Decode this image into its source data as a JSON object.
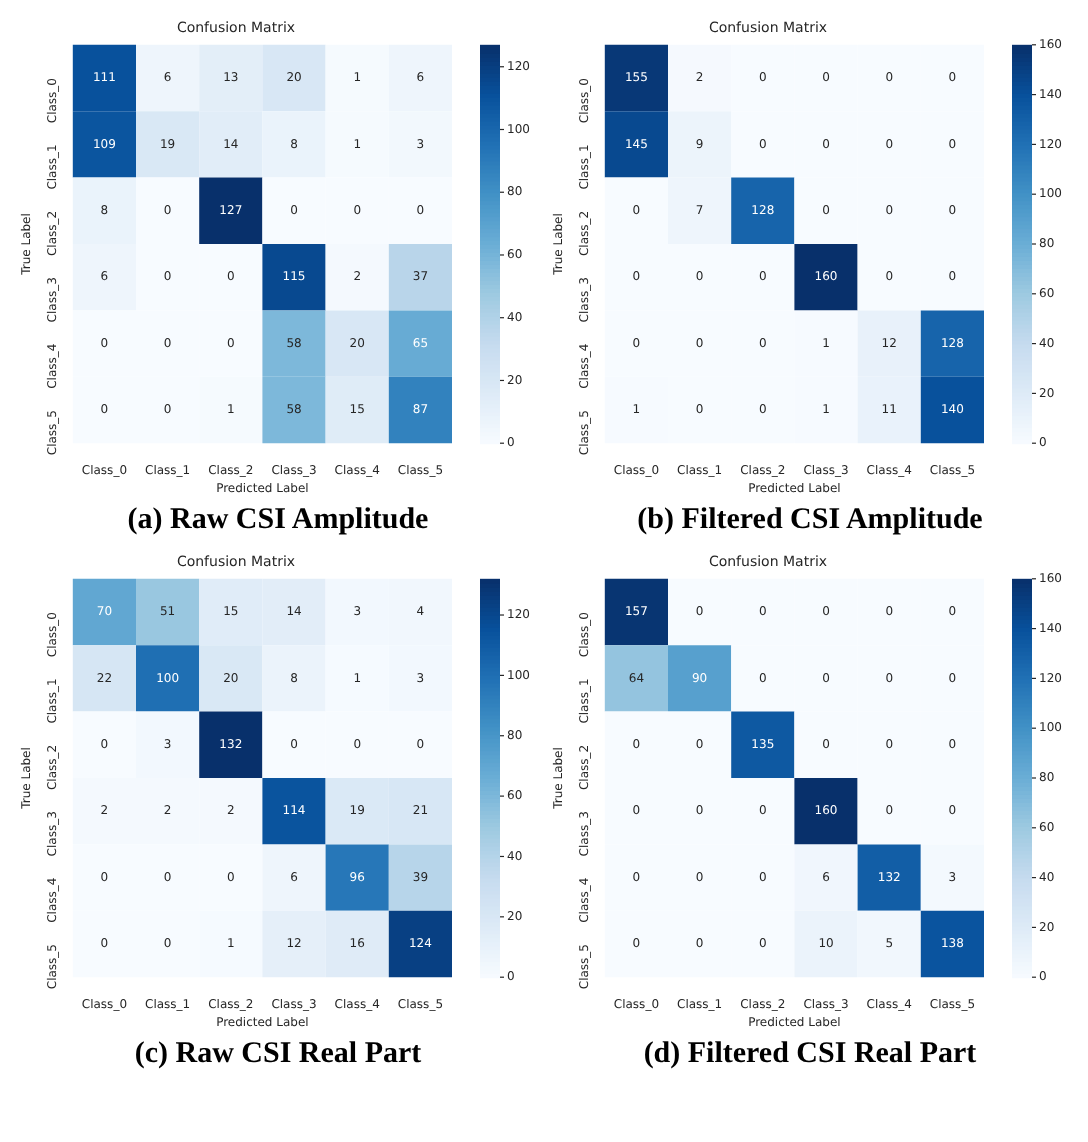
{
  "chart_data": [
    {
      "type": "heatmap",
      "title": "Confusion Matrix",
      "xlabel": "Predicted Label",
      "ylabel": "True Label",
      "annotations": [
        "(a) Raw CSI Amplitude"
      ],
      "categories": [
        "Class_0",
        "Class_1",
        "Class_2",
        "Class_3",
        "Class_4",
        "Class_5"
      ],
      "y_categories": [
        "Class_0",
        "Class_1",
        "Class_2",
        "Class_3",
        "Class_4",
        "Class_5"
      ],
      "data_labels": true,
      "clim": [
        0,
        127
      ],
      "cticks": [
        0,
        20,
        40,
        60,
        80,
        100,
        120
      ],
      "cells": [
        [
          111,
          6,
          13,
          20,
          1,
          6
        ],
        [
          109,
          19,
          14,
          8,
          1,
          3
        ],
        [
          8,
          0,
          127,
          0,
          0,
          0
        ],
        [
          6,
          0,
          0,
          115,
          2,
          37
        ],
        [
          0,
          0,
          0,
          58,
          20,
          65
        ],
        [
          0,
          0,
          1,
          58,
          15,
          87
        ]
      ]
    },
    {
      "type": "heatmap",
      "title": "Confusion Matrix",
      "xlabel": "Predicted Label",
      "ylabel": "True Label",
      "annotations": [
        "(b) Filtered CSI Amplitude"
      ],
      "categories": [
        "Class_0",
        "Class_1",
        "Class_2",
        "Class_3",
        "Class_4",
        "Class_5"
      ],
      "y_categories": [
        "Class_0",
        "Class_1",
        "Class_2",
        "Class_3",
        "Class_4",
        "Class_5"
      ],
      "data_labels": true,
      "clim": [
        0,
        160
      ],
      "cticks": [
        0,
        20,
        40,
        60,
        80,
        100,
        120,
        140,
        160
      ],
      "cells": [
        [
          155,
          2,
          0,
          0,
          0,
          0
        ],
        [
          145,
          9,
          0,
          0,
          0,
          0
        ],
        [
          0,
          7,
          128,
          0,
          0,
          0
        ],
        [
          0,
          0,
          0,
          160,
          0,
          0
        ],
        [
          0,
          0,
          0,
          1,
          12,
          128
        ],
        [
          1,
          0,
          0,
          1,
          11,
          140
        ]
      ]
    },
    {
      "type": "heatmap",
      "title": "Confusion Matrix",
      "xlabel": "Predicted Label",
      "ylabel": "True Label",
      "annotations": [
        "(c) Raw CSI Real Part"
      ],
      "categories": [
        "Class_0",
        "Class_1",
        "Class_2",
        "Class_3",
        "Class_4",
        "Class_5"
      ],
      "y_categories": [
        "Class_0",
        "Class_1",
        "Class_2",
        "Class_3",
        "Class_4",
        "Class_5"
      ],
      "data_labels": true,
      "clim": [
        0,
        132
      ],
      "cticks": [
        0,
        20,
        40,
        60,
        80,
        100,
        120
      ],
      "cells": [
        [
          70,
          51,
          15,
          14,
          3,
          4
        ],
        [
          22,
          100,
          20,
          8,
          1,
          3
        ],
        [
          0,
          3,
          132,
          0,
          0,
          0
        ],
        [
          2,
          2,
          2,
          114,
          19,
          21
        ],
        [
          0,
          0,
          0,
          6,
          96,
          39
        ],
        [
          0,
          0,
          1,
          12,
          16,
          124
        ]
      ]
    },
    {
      "type": "heatmap",
      "title": "Confusion Matrix",
      "xlabel": "Predicted Label",
      "ylabel": "True Label",
      "annotations": [
        "(d) Filtered CSI Real Part"
      ],
      "categories": [
        "Class_0",
        "Class_1",
        "Class_2",
        "Class_3",
        "Class_4",
        "Class_5"
      ],
      "y_categories": [
        "Class_0",
        "Class_1",
        "Class_2",
        "Class_3",
        "Class_4",
        "Class_5"
      ],
      "data_labels": true,
      "clim": [
        0,
        160
      ],
      "cticks": [
        0,
        20,
        40,
        60,
        80,
        100,
        120,
        140,
        160
      ],
      "cells": [
        [
          157,
          0,
          0,
          0,
          0,
          0
        ],
        [
          64,
          90,
          0,
          0,
          0,
          0
        ],
        [
          0,
          0,
          135,
          0,
          0,
          0
        ],
        [
          0,
          0,
          0,
          160,
          0,
          0
        ],
        [
          0,
          0,
          0,
          6,
          132,
          3
        ],
        [
          0,
          0,
          0,
          10,
          5,
          138
        ]
      ]
    }
  ]
}
